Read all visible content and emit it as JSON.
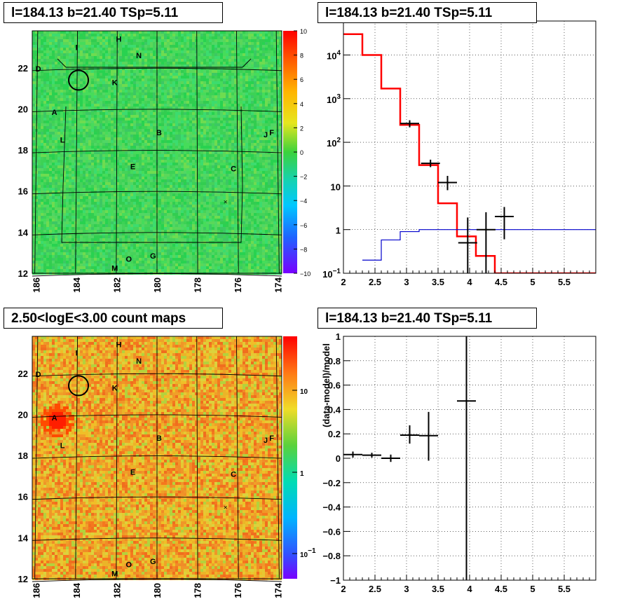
{
  "panels": {
    "tl": {
      "title": "l=184.13 b=21.40 TSp=5.11"
    },
    "tr": {
      "title": "l=184.13 b=21.40 TSp=5.11"
    },
    "bl": {
      "title": "2.50<logE<3.00 count maps"
    },
    "br": {
      "title": "l=184.13 b=21.40 TSp=5.11"
    }
  },
  "chart_data": [
    {
      "type": "heatmap",
      "panel": "top-left",
      "title": "l=184.13 b=21.40 TSp=5.11",
      "x_ticks": [
        "186",
        "184",
        "182",
        "180",
        "178",
        "176",
        "174"
      ],
      "y_ticks": [
        "12",
        "14",
        "16",
        "18",
        "20",
        "22"
      ],
      "xlim": [
        186.2,
        173.8
      ],
      "ylim": [
        12,
        23.8
      ],
      "colorbar": {
        "min": -10,
        "max": 10,
        "ticks": [
          "10",
          "8",
          "6",
          "4",
          "2",
          "0",
          "−2",
          "−4",
          "−6",
          "−8",
          "−10"
        ]
      },
      "dominant_color": "#3cd255",
      "labels": [
        {
          "t": "H",
          "l": 181.9,
          "b": 23.4
        },
        {
          "t": "I",
          "l": 184.0,
          "b": 23.0
        },
        {
          "t": "N",
          "l": 180.9,
          "b": 22.6
        },
        {
          "t": "D",
          "l": 185.9,
          "b": 21.95
        },
        {
          "t": "K",
          "l": 182.1,
          "b": 21.3
        },
        {
          "t": "A",
          "l": 185.1,
          "b": 19.85
        },
        {
          "t": "B",
          "l": 179.9,
          "b": 18.85
        },
        {
          "t": "J",
          "l": 174.6,
          "b": 18.75
        },
        {
          "t": "F",
          "l": 174.3,
          "b": 18.85
        },
        {
          "t": "L",
          "l": 184.7,
          "b": 18.5
        },
        {
          "t": "E",
          "l": 181.2,
          "b": 17.2
        },
        {
          "t": "C",
          "l": 176.2,
          "b": 17.1
        },
        {
          "t": "O",
          "l": 181.4,
          "b": 12.7
        },
        {
          "t": "G",
          "l": 180.2,
          "b": 12.85
        },
        {
          "t": "M",
          "l": 182.1,
          "b": 12.25
        }
      ],
      "circle": {
        "l": 183.9,
        "b": 21.4
      },
      "cross": {
        "l": 176.6,
        "b": 15.5
      }
    },
    {
      "type": "line",
      "panel": "top-right",
      "title": "l=184.13 b=21.40 TSp=5.11",
      "xlim": [
        2,
        6
      ],
      "ylim": [
        0.1,
        60000
      ],
      "yscale": "log",
      "x_ticks": [
        "2",
        "2.5",
        "3",
        "3.5",
        "4",
        "4.5",
        "5",
        "5.5"
      ],
      "y_ticks": [
        {
          "v": 0.1,
          "m": "10",
          "e": "−1"
        },
        {
          "v": 1,
          "m": "1",
          "e": ""
        },
        {
          "v": 10,
          "m": "10",
          "e": ""
        },
        {
          "v": 100,
          "m": "10",
          "e": "2"
        },
        {
          "v": 1000,
          "m": "10",
          "e": "3"
        },
        {
          "v": 10000,
          "m": "10",
          "e": "4"
        }
      ],
      "grid": true,
      "series": [
        {
          "color": "#ff0000",
          "steps": [
            [
              2,
              30000
            ],
            [
              2.3,
              10000
            ],
            [
              2.6,
              1700
            ],
            [
              2.9,
              250
            ],
            [
              3.2,
              30
            ],
            [
              3.5,
              4
            ],
            [
              3.8,
              0.7
            ],
            [
              4.1,
              0.25
            ],
            [
              4.4,
              0.1
            ],
            [
              6,
              0.1
            ]
          ]
        },
        {
          "color": "#0000cc",
          "steps": [
            [
              2.3,
              0.2
            ],
            [
              2.6,
              0.58
            ],
            [
              2.9,
              0.9
            ],
            [
              3.2,
              1.0
            ],
            [
              6,
              1.0
            ]
          ]
        }
      ],
      "points": [
        {
          "x": 3.05,
          "y": 270,
          "xe": 0.15,
          "yl": 220,
          "yh": 320
        },
        {
          "x": 3.38,
          "y": 33,
          "xe": 0.15,
          "yl": 27,
          "yh": 40
        },
        {
          "x": 3.65,
          "y": 12,
          "xe": 0.15,
          "yl": 8,
          "yh": 17
        },
        {
          "x": 3.97,
          "y": 0.5,
          "xe": 0.15,
          "yl": 0.1,
          "yh": 1.9
        },
        {
          "x": 4.26,
          "y": 1.0,
          "xe": 0.15,
          "yl": 0.1,
          "yh": 2.5
        },
        {
          "x": 4.55,
          "y": 2.0,
          "xe": 0.15,
          "yl": 0.6,
          "yh": 3.3
        }
      ]
    },
    {
      "type": "heatmap",
      "panel": "bottom-left",
      "title": "2.50<logE<3.00 count maps",
      "x_ticks": [
        "186",
        "184",
        "182",
        "180",
        "178",
        "176",
        "174"
      ],
      "y_ticks": [
        "12",
        "14",
        "16",
        "18",
        "20",
        "22"
      ],
      "xlim": [
        186.2,
        173.8
      ],
      "ylim": [
        12,
        23.8
      ],
      "colorbar": {
        "scale": "log",
        "ticks": [
          {
            "m": "10",
            "e": ""
          },
          {
            "m": "1",
            "e": ""
          },
          {
            "m": "10",
            "e": "−1"
          }
        ]
      },
      "dominant_color": "#f08c28",
      "hotspot": {
        "l": 185.2,
        "b": 19.9
      },
      "labels": [
        {
          "t": "H",
          "l": 181.9,
          "b": 23.4
        },
        {
          "t": "I",
          "l": 184.0,
          "b": 23.0
        },
        {
          "t": "N",
          "l": 180.9,
          "b": 22.6
        },
        {
          "t": "D",
          "l": 185.9,
          "b": 21.95
        },
        {
          "t": "K",
          "l": 182.1,
          "b": 21.3
        },
        {
          "t": "A",
          "l": 185.1,
          "b": 19.85
        },
        {
          "t": "B",
          "l": 179.9,
          "b": 18.85
        },
        {
          "t": "J",
          "l": 174.6,
          "b": 18.75
        },
        {
          "t": "F",
          "l": 174.3,
          "b": 18.85
        },
        {
          "t": "L",
          "l": 184.7,
          "b": 18.5
        },
        {
          "t": "E",
          "l": 181.2,
          "b": 17.2
        },
        {
          "t": "C",
          "l": 176.2,
          "b": 17.1
        },
        {
          "t": "O",
          "l": 181.4,
          "b": 12.7
        },
        {
          "t": "G",
          "l": 180.2,
          "b": 12.85
        },
        {
          "t": "M",
          "l": 182.1,
          "b": 12.25
        }
      ],
      "circle": {
        "l": 183.9,
        "b": 21.4
      },
      "cross": {
        "l": 176.6,
        "b": 15.5
      }
    },
    {
      "type": "scatter",
      "panel": "bottom-right",
      "title": "l=184.13 b=21.40 TSp=5.11",
      "ylabel": "(data-model)/model",
      "xlim": [
        2,
        6
      ],
      "ylim": [
        -1,
        1
      ],
      "x_ticks": [
        "2",
        "2.5",
        "3",
        "3.5",
        "4",
        "4.5",
        "5",
        "5.5"
      ],
      "y_ticks": [
        "1",
        "0.8",
        "0.6",
        "0.4",
        "0.2",
        "0",
        "−0.2",
        "−0.4",
        "−0.6",
        "−0.8",
        "−1"
      ],
      "grid": true,
      "points": [
        {
          "x": 2.15,
          "y": 0.03,
          "xe": 0.15,
          "yl": 0.005,
          "yh": 0.055
        },
        {
          "x": 2.45,
          "y": 0.025,
          "xe": 0.15,
          "yl": 0.005,
          "yh": 0.045
        },
        {
          "x": 2.75,
          "y": 0.0,
          "xe": 0.15,
          "yl": -0.03,
          "yh": 0.03
        },
        {
          "x": 3.05,
          "y": 0.19,
          "xe": 0.15,
          "yl": 0.12,
          "yh": 0.27
        },
        {
          "x": 3.35,
          "y": 0.185,
          "xe": 0.15,
          "yl": -0.02,
          "yh": 0.38
        },
        {
          "x": 3.95,
          "y": 0.47,
          "xe": 0.15,
          "yl": -1,
          "yh": 1
        }
      ]
    }
  ]
}
